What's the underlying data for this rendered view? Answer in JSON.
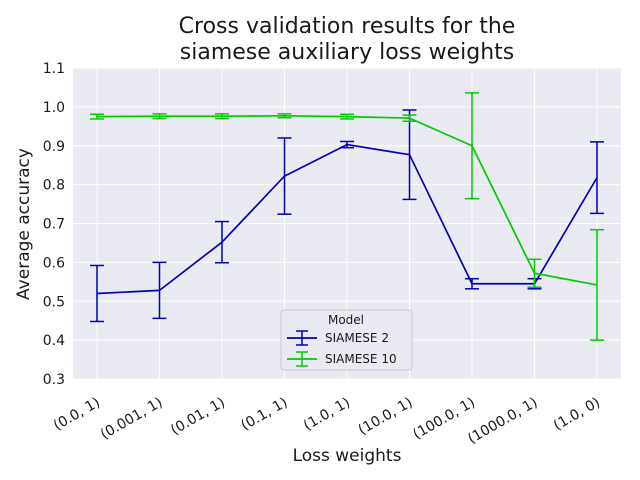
{
  "chart_data": {
    "type": "line",
    "title_lines": [
      "Cross validation results for the",
      "siamese auxiliary loss weights"
    ],
    "xlabel": "Loss weights",
    "ylabel": "Average accuracy",
    "categories": [
      "(0.0, 1)",
      "(0.001, 1)",
      "(0.01, 1)",
      "(0.1, 1)",
      "(1.0, 1)",
      "(10.0, 1)",
      "(100.0, 1)",
      "(1000.0, 1)",
      "(1.0, 0)"
    ],
    "ylim": [
      0.3,
      1.1
    ],
    "yticks": [
      "0.3",
      "0.4",
      "0.5",
      "0.6",
      "0.7",
      "0.8",
      "0.9",
      "1.0",
      "1.1"
    ],
    "grid": true,
    "legend": {
      "title": "Model",
      "position": "lower-center"
    },
    "series": [
      {
        "name": "SIAMESE 2",
        "color": "#0000bb",
        "values": [
          0.52,
          0.528,
          0.652,
          0.822,
          0.903,
          0.877,
          0.545,
          0.545,
          0.818
        ],
        "errors": [
          0.072,
          0.072,
          0.053,
          0.098,
          0.008,
          0.115,
          0.013,
          0.013,
          0.092
        ]
      },
      {
        "name": "SIAMESE 10",
        "color": "#00cc00",
        "values": [
          0.975,
          0.976,
          0.976,
          0.977,
          0.975,
          0.971,
          0.9,
          0.572,
          0.542
        ],
        "errors": [
          0.006,
          0.006,
          0.006,
          0.005,
          0.006,
          0.008,
          0.136,
          0.036,
          0.142
        ]
      }
    ]
  }
}
